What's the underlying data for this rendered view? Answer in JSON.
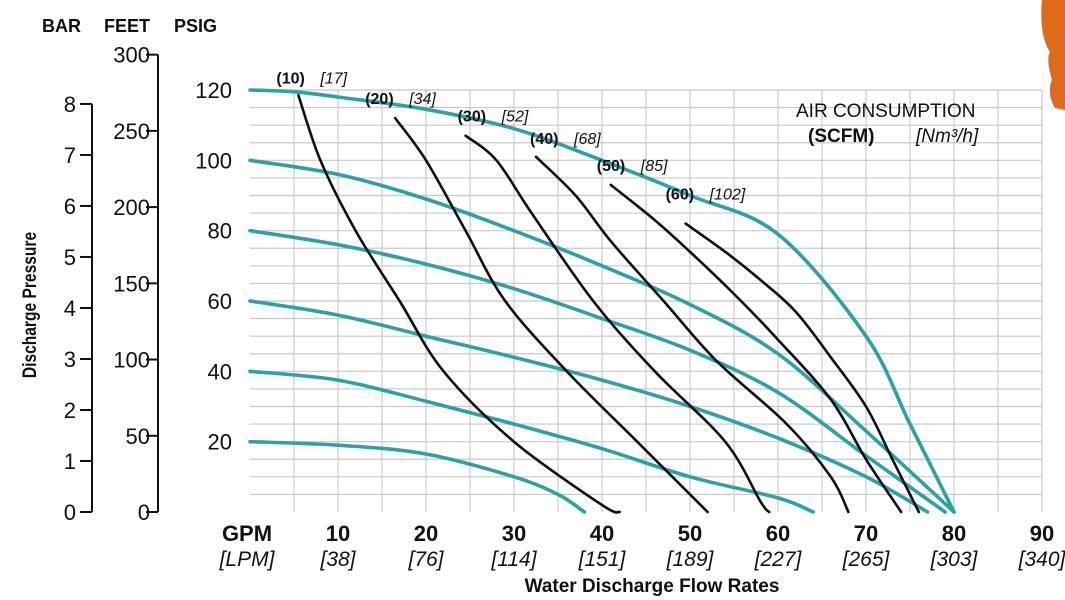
{
  "chart_data": {
    "type": "line",
    "title": "",
    "xlabel": "Water Discharge Flow Rates",
    "ylabel": "Discharge Pressure",
    "unit_headers": {
      "bar": "BAR",
      "feet": "FEET",
      "psig": "PSIG"
    },
    "xlim": [
      0,
      90
    ],
    "ylim_psig": [
      0,
      120
    ],
    "grid": true,
    "x_ticks": [
      {
        "gpm": "GPM",
        "lpm": "[LPM]",
        "value": 0
      },
      {
        "gpm": "10",
        "lpm": "[38]",
        "value": 10
      },
      {
        "gpm": "20",
        "lpm": "[76]",
        "value": 20
      },
      {
        "gpm": "30",
        "lpm": "[114]",
        "value": 30
      },
      {
        "gpm": "40",
        "lpm": "[151]",
        "value": 40
      },
      {
        "gpm": "50",
        "lpm": "[189]",
        "value": 50
      },
      {
        "gpm": "60",
        "lpm": "[227]",
        "value": 60
      },
      {
        "gpm": "70",
        "lpm": "[265]",
        "value": 70
      },
      {
        "gpm": "80",
        "lpm": "[303]",
        "value": 80
      },
      {
        "gpm": "90",
        "lpm": "[340]",
        "value": 90
      }
    ],
    "psig_ticks": [
      "20",
      "40",
      "60",
      "80",
      "100",
      "120"
    ],
    "feet_ticks": [
      "0",
      "50",
      "100",
      "150",
      "200",
      "250",
      "300"
    ],
    "bar_ticks": [
      "0",
      "1",
      "2",
      "3",
      "4",
      "5",
      "6",
      "7",
      "8"
    ],
    "air_consumption": {
      "title": "AIR CONSUMPTION",
      "unit_a": "(SCFM)",
      "unit_b": "[Nm³/h]",
      "labels": [
        {
          "scfm": "(10)",
          "nm3h": "[17]"
        },
        {
          "scfm": "(20)",
          "nm3h": "[34]"
        },
        {
          "scfm": "(30)",
          "nm3h": "[52]"
        },
        {
          "scfm": "(40)",
          "nm3h": "[68]"
        },
        {
          "scfm": "(50)",
          "nm3h": "[85]"
        },
        {
          "scfm": "(60)",
          "nm3h": "[102]"
        }
      ]
    },
    "series": [
      {
        "kind": "air_inlet_pressure",
        "color": "#2aa3a6",
        "points": [
          [
            0,
            120
          ],
          [
            5,
            119.5
          ],
          [
            10,
            118
          ],
          [
            20,
            114.5
          ],
          [
            30,
            109
          ],
          [
            40,
            100
          ],
          [
            50,
            90
          ],
          [
            60,
            79
          ],
          [
            70,
            50
          ],
          [
            75,
            25
          ],
          [
            80,
            0
          ]
        ]
      },
      {
        "kind": "air_inlet_pressure",
        "color": "#2aa3a6",
        "points": [
          [
            0,
            100
          ],
          [
            10,
            96
          ],
          [
            20,
            89
          ],
          [
            30,
            80
          ],
          [
            40,
            70
          ],
          [
            50,
            59
          ],
          [
            60,
            45
          ],
          [
            70,
            23
          ],
          [
            80,
            0
          ]
        ]
      },
      {
        "kind": "air_inlet_pressure",
        "color": "#2aa3a6",
        "points": [
          [
            0,
            80
          ],
          [
            10,
            76
          ],
          [
            20,
            70.5
          ],
          [
            30,
            63.5
          ],
          [
            40,
            55
          ],
          [
            50,
            46
          ],
          [
            60,
            34
          ],
          [
            70,
            16
          ],
          [
            79,
            0
          ]
        ]
      },
      {
        "kind": "air_inlet_pressure",
        "color": "#2aa3a6",
        "points": [
          [
            0,
            60
          ],
          [
            10,
            56
          ],
          [
            20,
            50
          ],
          [
            30,
            44
          ],
          [
            40,
            37.5
          ],
          [
            50,
            30
          ],
          [
            60,
            21
          ],
          [
            70,
            10
          ],
          [
            77,
            0
          ]
        ]
      },
      {
        "kind": "air_inlet_pressure",
        "color": "#2aa3a6",
        "points": [
          [
            0,
            40
          ],
          [
            10,
            37.5
          ],
          [
            20,
            31.5
          ],
          [
            30,
            25
          ],
          [
            40,
            18
          ],
          [
            50,
            10
          ],
          [
            60,
            4
          ],
          [
            64,
            0
          ]
        ]
      },
      {
        "kind": "air_inlet_pressure",
        "color": "#2aa3a6",
        "points": [
          [
            0,
            20
          ],
          [
            10,
            19
          ],
          [
            20,
            16.5
          ],
          [
            30,
            10
          ],
          [
            35,
            5
          ],
          [
            38,
            0
          ]
        ]
      },
      {
        "kind": "air_consumption",
        "color": "#111111",
        "points": [
          [
            5.5,
            118.5
          ],
          [
            8,
            100
          ],
          [
            12,
            80
          ],
          [
            17,
            60
          ],
          [
            22,
            40
          ],
          [
            30,
            20
          ],
          [
            40,
            2
          ],
          [
            42,
            0
          ]
        ]
      },
      {
        "kind": "air_consumption",
        "color": "#111111",
        "points": [
          [
            16.5,
            112
          ],
          [
            20,
            100
          ],
          [
            24.5,
            80
          ],
          [
            29,
            60
          ],
          [
            36,
            40
          ],
          [
            44,
            20
          ],
          [
            50,
            5
          ],
          [
            52,
            0
          ]
        ]
      },
      {
        "kind": "air_consumption",
        "color": "#111111",
        "points": [
          [
            24.5,
            107
          ],
          [
            28,
            100
          ],
          [
            32,
            85
          ],
          [
            39,
            60
          ],
          [
            46,
            40
          ],
          [
            54,
            20
          ],
          [
            58,
            3
          ],
          [
            59,
            0
          ]
        ]
      },
      {
        "kind": "air_consumption",
        "color": "#111111",
        "points": [
          [
            32.5,
            101
          ],
          [
            37,
            90
          ],
          [
            41,
            77
          ],
          [
            47,
            60
          ],
          [
            53,
            43
          ],
          [
            61,
            25
          ],
          [
            66,
            10
          ],
          [
            68,
            0
          ]
        ]
      },
      {
        "kind": "air_consumption",
        "color": "#111111",
        "points": [
          [
            41,
            93
          ],
          [
            46,
            83
          ],
          [
            50,
            74
          ],
          [
            55,
            62
          ],
          [
            60,
            49
          ],
          [
            66,
            32
          ],
          [
            70,
            15
          ],
          [
            74,
            0
          ]
        ]
      },
      {
        "kind": "air_consumption",
        "color": "#111111",
        "points": [
          [
            49.5,
            82
          ],
          [
            54,
            74
          ],
          [
            58,
            66
          ],
          [
            62,
            57
          ],
          [
            66,
            44
          ],
          [
            70,
            30
          ],
          [
            73,
            15
          ],
          [
            76,
            0
          ]
        ]
      }
    ]
  },
  "decor": {
    "corner_object_color": "#e06a1a"
  }
}
